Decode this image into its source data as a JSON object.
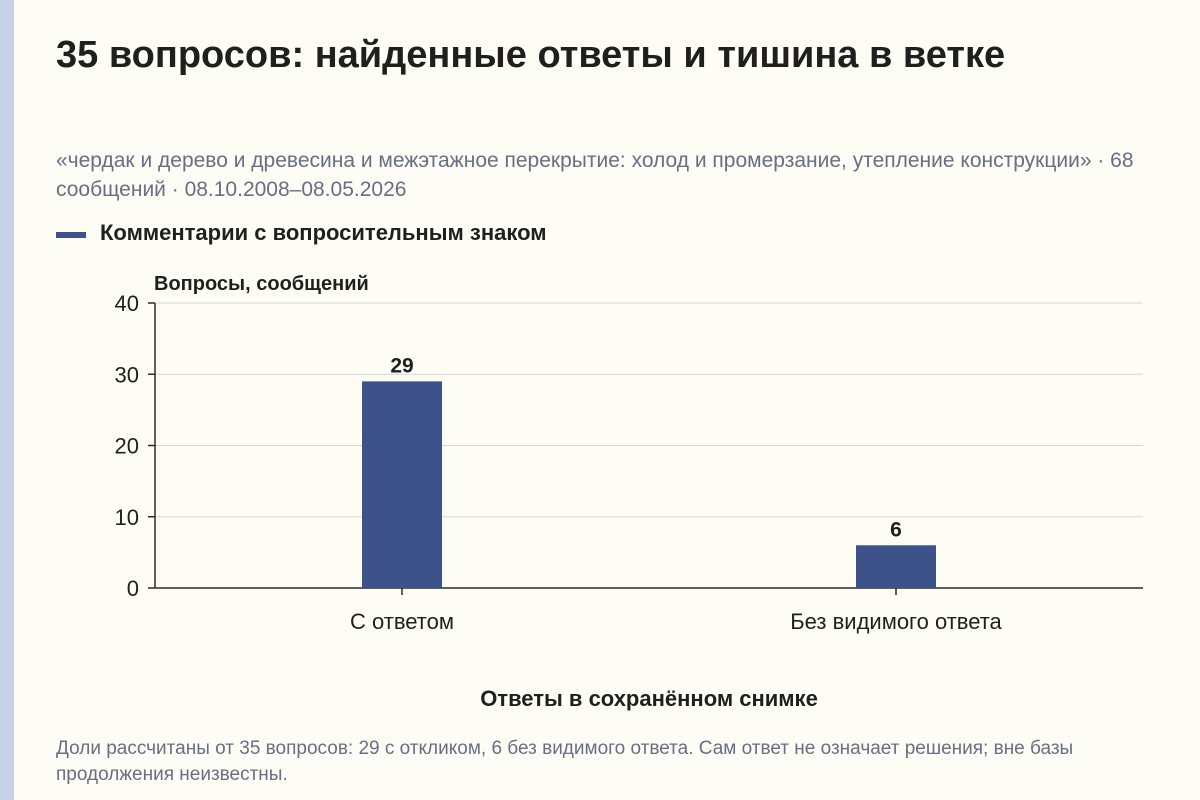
{
  "title": "35 вопросов: найденные ответы и тишина в ветке",
  "subtitle": "«чердак и дерево и древесина и межэтажное перекрытие: холод и промерзание, утепление конструкции» · 68 сообщений · 08.10.2008–08.05.2026",
  "footnote": "Доли рассчитаны от 35 вопросов: 29 с откликом, 6 без видимого ответа. Сам ответ не означает решения; вне базы продолжения неизвестны.",
  "colors": {
    "bar": "#3d5289",
    "grid": "#d6d6d0",
    "axis": "#2b2b2b"
  },
  "chart_data": {
    "type": "bar",
    "categories": [
      "С ответом",
      "Без видимого ответа"
    ],
    "series": [
      {
        "name": "Комментарии с вопросительным знаком",
        "values": [
          29,
          6
        ]
      }
    ],
    "xlabel": "Ответы в сохранённом снимке",
    "ylabel": "Вопросы, сообщений",
    "ylim": [
      0,
      40
    ],
    "yticks": [
      0,
      10,
      20,
      30,
      40
    ],
    "data_labels": true,
    "grid": true,
    "legend": "top-left"
  }
}
